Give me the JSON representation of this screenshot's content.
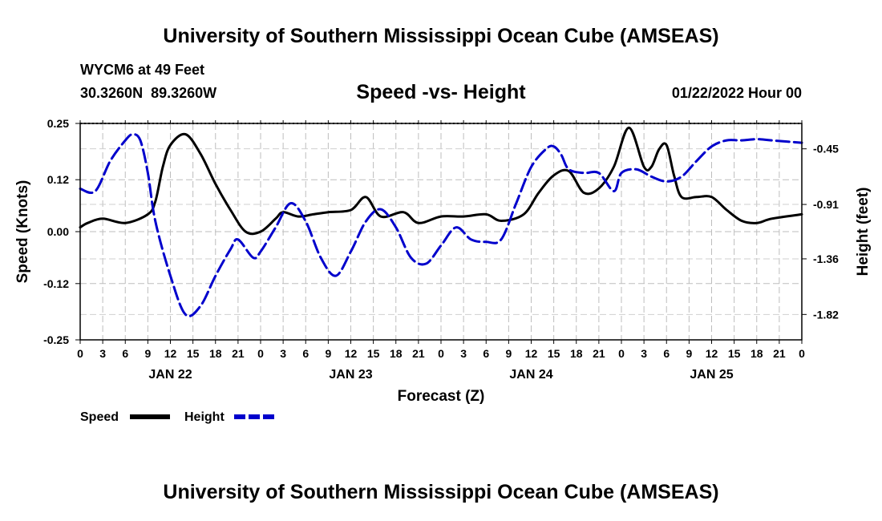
{
  "header": {
    "title_top": "University of Southern Mississippi Ocean Cube (AMSEAS)",
    "station": "WYCM6 at 49 Feet",
    "coords": "30.3260N  89.3260W",
    "date_time": "01/22/2022 Hour 00",
    "title_bottom": "University of Southern Mississippi Ocean Cube (AMSEAS)"
  },
  "chart_data": {
    "type": "line",
    "title": "Speed -vs- Height",
    "xlabel": "Forecast (Z)",
    "ylabel": "Speed (Knots)",
    "y2label": "Height (feet)",
    "x_range_hours": [
      0,
      96
    ],
    "ylim": [
      -0.25,
      0.25
    ],
    "y2lim": [
      -2.03,
      -0.24
    ],
    "yticks": [
      "0.25",
      "0.12",
      "0.00",
      "-0.12",
      "-0.25"
    ],
    "yticks_values": [
      0.25,
      0.12,
      0.0,
      -0.12,
      -0.25
    ],
    "y2ticks": [
      "-0.45",
      "-0.91",
      "-1.36",
      "-1.82"
    ],
    "y2ticks_values": [
      -0.45,
      -0.91,
      -1.36,
      -1.82
    ],
    "x_tick_hours": [
      0,
      3,
      6,
      9,
      12,
      15,
      18,
      21,
      24,
      27,
      30,
      33,
      36,
      39,
      42,
      45,
      48,
      51,
      54,
      57,
      60,
      63,
      66,
      69,
      72,
      75,
      78,
      81,
      84,
      87,
      90,
      93,
      96
    ],
    "x_tick_labels": [
      "0",
      "3",
      "6",
      "9",
      "12",
      "15",
      "18",
      "21",
      "0",
      "3",
      "6",
      "9",
      "12",
      "15",
      "18",
      "21",
      "0",
      "3",
      "6",
      "9",
      "12",
      "15",
      "18",
      "21",
      "0",
      "3",
      "6",
      "9",
      "12",
      "15",
      "18",
      "21",
      "0"
    ],
    "day_labels": [
      {
        "label": "JAN 22",
        "hour": 12
      },
      {
        "label": "JAN 23",
        "hour": 36
      },
      {
        "label": "JAN 24",
        "hour": 60
      },
      {
        "label": "JAN 25",
        "hour": 84
      }
    ],
    "series": [
      {
        "name": "Speed",
        "color": "#000000",
        "dash": "solid",
        "axis": "left",
        "points": [
          [
            0,
            0.01
          ],
          [
            1,
            0.02
          ],
          [
            3,
            0.03
          ],
          [
            6,
            0.02
          ],
          [
            9,
            0.04
          ],
          [
            10,
            0.07
          ],
          [
            11,
            0.15
          ],
          [
            12,
            0.2
          ],
          [
            14,
            0.225
          ],
          [
            16,
            0.18
          ],
          [
            18,
            0.11
          ],
          [
            20,
            0.05
          ],
          [
            22,
            0.0
          ],
          [
            24,
            0.0
          ],
          [
            26,
            0.03
          ],
          [
            27,
            0.045
          ],
          [
            29,
            0.035
          ],
          [
            31,
            0.04
          ],
          [
            33,
            0.045
          ],
          [
            36,
            0.05
          ],
          [
            38,
            0.08
          ],
          [
            40,
            0.035
          ],
          [
            43,
            0.045
          ],
          [
            45,
            0.02
          ],
          [
            48,
            0.035
          ],
          [
            51,
            0.035
          ],
          [
            54,
            0.04
          ],
          [
            56,
            0.025
          ],
          [
            59,
            0.04
          ],
          [
            61,
            0.09
          ],
          [
            63,
            0.13
          ],
          [
            65,
            0.14
          ],
          [
            67,
            0.09
          ],
          [
            69,
            0.1
          ],
          [
            71,
            0.15
          ],
          [
            73,
            0.24
          ],
          [
            75,
            0.15
          ],
          [
            76,
            0.15
          ],
          [
            77,
            0.19
          ],
          [
            78,
            0.2
          ],
          [
            79,
            0.13
          ],
          [
            80,
            0.08
          ],
          [
            82,
            0.08
          ],
          [
            84,
            0.08
          ],
          [
            86,
            0.05
          ],
          [
            88,
            0.025
          ],
          [
            90,
            0.02
          ],
          [
            92,
            0.03
          ],
          [
            96,
            0.04
          ]
        ]
      },
      {
        "name": "Height",
        "color": "#0000cc",
        "dash": "dashed",
        "axis": "right",
        "points": [
          [
            0,
            -0.78
          ],
          [
            2,
            -0.8
          ],
          [
            4,
            -0.55
          ],
          [
            6,
            -0.38
          ],
          [
            7,
            -0.33
          ],
          [
            8,
            -0.38
          ],
          [
            9,
            -0.65
          ],
          [
            10,
            -1.05
          ],
          [
            12,
            -1.5
          ],
          [
            14,
            -1.82
          ],
          [
            16,
            -1.75
          ],
          [
            18,
            -1.5
          ],
          [
            20,
            -1.28
          ],
          [
            21,
            -1.2
          ],
          [
            23,
            -1.35
          ],
          [
            24,
            -1.3
          ],
          [
            26,
            -1.1
          ],
          [
            28,
            -0.9
          ],
          [
            30,
            -1.05
          ],
          [
            32,
            -1.35
          ],
          [
            34,
            -1.5
          ],
          [
            36,
            -1.3
          ],
          [
            38,
            -1.05
          ],
          [
            40,
            -0.95
          ],
          [
            42,
            -1.1
          ],
          [
            44,
            -1.35
          ],
          [
            46,
            -1.4
          ],
          [
            48,
            -1.25
          ],
          [
            50,
            -1.1
          ],
          [
            52,
            -1.2
          ],
          [
            54,
            -1.22
          ],
          [
            56,
            -1.2
          ],
          [
            58,
            -0.9
          ],
          [
            60,
            -0.6
          ],
          [
            62,
            -0.45
          ],
          [
            63,
            -0.43
          ],
          [
            64,
            -0.5
          ],
          [
            65,
            -0.62
          ],
          [
            67,
            -0.65
          ],
          [
            69,
            -0.65
          ],
          [
            71,
            -0.8
          ],
          [
            72,
            -0.65
          ],
          [
            74,
            -0.62
          ],
          [
            76,
            -0.68
          ],
          [
            78,
            -0.72
          ],
          [
            80,
            -0.68
          ],
          [
            82,
            -0.55
          ],
          [
            84,
            -0.43
          ],
          [
            86,
            -0.38
          ],
          [
            88,
            -0.38
          ],
          [
            90,
            -0.37
          ],
          [
            92,
            -0.38
          ],
          [
            96,
            -0.4
          ]
        ]
      }
    ],
    "legend": [
      {
        "label": "Speed",
        "color": "#000000"
      },
      {
        "label": "Height",
        "color": "#0000cc"
      }
    ]
  }
}
